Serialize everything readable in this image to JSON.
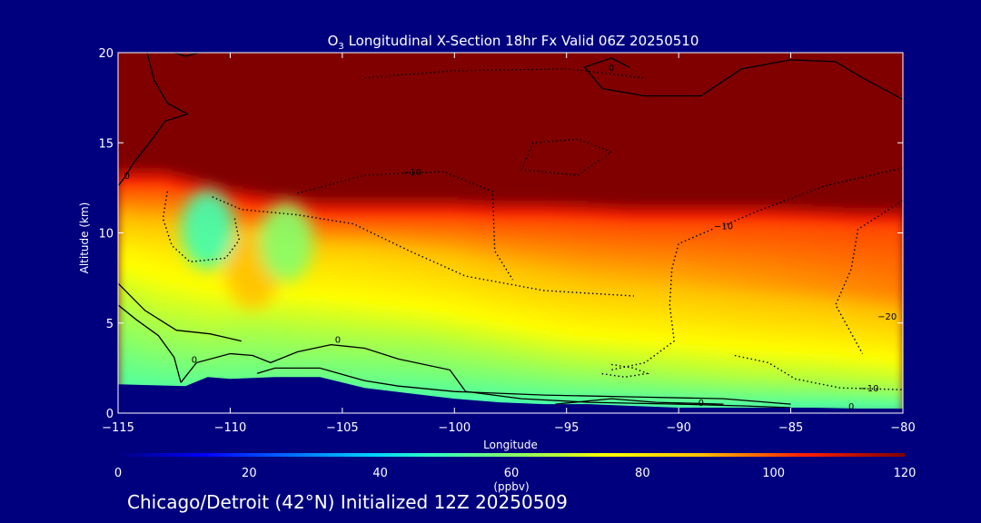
{
  "chart_data": {
    "type": "heatmap",
    "title_species": "O",
    "title_subscript": "3",
    "title_rest": " Longitudinal X-Section 18hr  Fx Valid 06Z 20250510",
    "xlabel": "Longitude",
    "ylabel": "Altitude (km)",
    "xlim": [
      -115,
      -80
    ],
    "ylim": [
      0,
      20
    ],
    "xticks": [
      -115,
      -110,
      -105,
      -100,
      -95,
      -90,
      -85,
      -80
    ],
    "xtick_labels": [
      "−115",
      "−110",
      "−105",
      "−100",
      "−95",
      "−90",
      "−85",
      "−80"
    ],
    "yticks": [
      0,
      5,
      10,
      15,
      20
    ],
    "ytick_labels": [
      "0",
      "5",
      "10",
      "15",
      "20"
    ],
    "colorbar": {
      "min": 0,
      "max": 120,
      "ticks": [
        0,
        20,
        40,
        60,
        80,
        100,
        120
      ],
      "tick_labels": [
        "0",
        "20",
        "40",
        "60",
        "80",
        "100",
        "120"
      ],
      "units": "(ppbv)"
    },
    "terrain_km": [
      [
        -115,
        1.6
      ],
      [
        -112,
        1.5
      ],
      [
        -111,
        2.0
      ],
      [
        -110,
        1.9
      ],
      [
        -108,
        2.0
      ],
      [
        -106,
        2.0
      ],
      [
        -104,
        1.4
      ],
      [
        -102,
        1.1
      ],
      [
        -100,
        0.8
      ],
      [
        -98,
        0.6
      ],
      [
        -96,
        0.5
      ],
      [
        -94,
        0.5
      ],
      [
        -92,
        0.4
      ],
      [
        -90,
        0.3
      ],
      [
        -88,
        0.3
      ],
      [
        -86,
        0.3
      ],
      [
        -84,
        0.3
      ],
      [
        -82,
        0.25
      ],
      [
        -80,
        0.25
      ]
    ],
    "tropopause_km": [
      [
        -115,
        12.6
      ],
      [
        -113,
        12.6
      ],
      [
        -112,
        12.3
      ],
      [
        -110,
        11.6
      ],
      [
        -108,
        11.2
      ],
      [
        -106,
        10.9
      ],
      [
        -104,
        10.9
      ],
      [
        -102,
        10.9
      ],
      [
        -100,
        10.9
      ],
      [
        -98,
        10.8
      ],
      [
        -96,
        10.8
      ],
      [
        -94,
        10.7
      ],
      [
        -92,
        10.6
      ],
      [
        -90,
        10.6
      ],
      [
        -88,
        10.6
      ],
      [
        -86,
        10.6
      ],
      [
        -84,
        10.5
      ],
      [
        -82,
        10.4
      ],
      [
        -80,
        10.4
      ]
    ],
    "upper_troposphere_km": [
      [
        -115,
        9.0
      ],
      [
        -112,
        8.8
      ],
      [
        -110,
        8.5
      ],
      [
        -108,
        8.6
      ],
      [
        -106,
        8.6
      ],
      [
        -104,
        8.6
      ],
      [
        -102,
        8.4
      ],
      [
        -100,
        8.2
      ],
      [
        -98,
        7.8
      ],
      [
        -96,
        7.5
      ],
      [
        -94,
        7.3
      ],
      [
        -92,
        7.3
      ],
      [
        -90,
        7.3
      ],
      [
        -88,
        7.2
      ],
      [
        -86,
        7.1
      ],
      [
        -84,
        7.0
      ],
      [
        -82,
        6.8
      ],
      [
        -80,
        6.6
      ]
    ],
    "boundary_layer_top_km": [
      [
        -115,
        6.0
      ],
      [
        -113,
        5.0
      ],
      [
        -111,
        4.6
      ],
      [
        -109,
        4.8
      ],
      [
        -107,
        4.6
      ],
      [
        -105,
        4.4
      ],
      [
        -103,
        4.2
      ],
      [
        -101,
        4.0
      ],
      [
        -99,
        3.6
      ],
      [
        -97,
        3.2
      ],
      [
        -95,
        2.8
      ],
      [
        -93,
        2.6
      ],
      [
        -91,
        2.4
      ],
      [
        -89,
        2.2
      ],
      [
        -87,
        2.0
      ],
      [
        -85,
        1.9
      ],
      [
        -83,
        1.8
      ],
      [
        -81,
        1.6
      ],
      [
        -80,
        1.5
      ]
    ],
    "hotspots": [
      {
        "lon": -109.0,
        "alt_km": 8.0,
        "value": 88
      },
      {
        "lon": -111.0,
        "alt_km": 10.2,
        "value": 50
      },
      {
        "lon": -107.5,
        "alt_km": 9.5,
        "value": 60
      }
    ],
    "contour_labels": [
      {
        "text": "0",
        "lon": -114.6,
        "alt_km": 13.0
      },
      {
        "text": "0",
        "lon": -111.6,
        "alt_km": 2.8
      },
      {
        "text": "0",
        "lon": -105.2,
        "alt_km": 3.9
      },
      {
        "text": "0",
        "lon": -93.0,
        "alt_km": 19.0
      },
      {
        "text": "0",
        "lon": -89.0,
        "alt_km": 0.4
      },
      {
        "text": "0",
        "lon": -82.3,
        "alt_km": 0.2
      },
      {
        "text": "−10",
        "lon": -101.9,
        "alt_km": 13.2
      },
      {
        "text": "−10",
        "lon": -88.0,
        "alt_km": 10.2
      },
      {
        "text": "−10",
        "lon": -81.5,
        "alt_km": 1.2
      },
      {
        "text": "−20",
        "lon": -80.7,
        "alt_km": 5.2
      }
    ],
    "solid_contours": [
      [
        [
          -113.7,
          20
        ],
        [
          -113.4,
          18.5
        ],
        [
          -112.8,
          17.2
        ],
        [
          -111.9,
          16.6
        ],
        [
          -112.9,
          16.2
        ],
        [
          -113.6,
          15.0
        ],
        [
          -114.3,
          13.9
        ],
        [
          -114.7,
          13.1
        ],
        [
          -115,
          12.6
        ]
      ],
      [
        [
          -112.5,
          20
        ],
        [
          -112.0,
          19.8
        ],
        [
          -111.4,
          20
        ]
      ],
      [
        [
          -115,
          6.0
        ],
        [
          -114.2,
          5.2
        ],
        [
          -113.2,
          4.3
        ],
        [
          -112.5,
          3.1
        ],
        [
          -112.2,
          1.7
        ]
      ],
      [
        [
          -115,
          7.2
        ],
        [
          -113.8,
          5.7
        ],
        [
          -112.4,
          4.6
        ],
        [
          -110.9,
          4.4
        ],
        [
          -109.5,
          4.0
        ]
      ],
      [
        [
          -112.2,
          1.7
        ],
        [
          -111.5,
          2.8
        ],
        [
          -110.0,
          3.3
        ],
        [
          -109.0,
          3.2
        ],
        [
          -108.2,
          2.8
        ],
        [
          -107.0,
          3.4
        ],
        [
          -105.5,
          3.8
        ],
        [
          -104.0,
          3.6
        ],
        [
          -102.5,
          3.0
        ],
        [
          -100.2,
          2.4
        ],
        [
          -99.5,
          1.2
        ],
        [
          -97.0,
          0.8
        ],
        [
          -94.0,
          0.6
        ],
        [
          -90.0,
          0.5
        ],
        [
          -87.0,
          0.4
        ],
        [
          -85.0,
          0.3
        ]
      ],
      [
        [
          -108.8,
          2.2
        ],
        [
          -108.0,
          2.5
        ],
        [
          -106.0,
          2.5
        ],
        [
          -104.0,
          1.8
        ],
        [
          -102.5,
          1.5
        ],
        [
          -100.0,
          1.2
        ],
        [
          -96.0,
          1.0
        ],
        [
          -92.0,
          0.9
        ],
        [
          -88.0,
          0.8
        ],
        [
          -85.0,
          0.5
        ]
      ],
      [
        [
          -95.5,
          0.5
        ],
        [
          -93.0,
          0.8
        ],
        [
          -91.0,
          0.6
        ],
        [
          -88.0,
          0.5
        ]
      ],
      [
        [
          -80,
          17.4
        ],
        [
          -81.8,
          18.6
        ],
        [
          -83.0,
          19.5
        ],
        [
          -85.0,
          19.6
        ],
        [
          -87.2,
          19.1
        ],
        [
          -89.0,
          17.6
        ],
        [
          -91.5,
          17.6
        ],
        [
          -93.4,
          18.0
        ],
        [
          -94.2,
          19.2
        ],
        [
          -93.0,
          19.7
        ],
        [
          -92.2,
          19.2
        ]
      ]
    ],
    "dotted_contours": [
      [
        [
          -112.8,
          12.3
        ],
        [
          -113.0,
          10.8
        ],
        [
          -112.6,
          9.3
        ],
        [
          -111.8,
          8.4
        ],
        [
          -110.2,
          8.6
        ],
        [
          -109.6,
          9.6
        ],
        [
          -109.8,
          10.8
        ]
      ],
      [
        [
          -110.8,
          12.0
        ],
        [
          -109.5,
          11.3
        ],
        [
          -107.0,
          11.0
        ],
        [
          -104.5,
          10.5
        ],
        [
          -102.0,
          9.0
        ],
        [
          -99.5,
          7.6
        ],
        [
          -96.0,
          6.8
        ],
        [
          -92.0,
          6.5
        ]
      ],
      [
        [
          -107.0,
          12.2
        ],
        [
          -104.0,
          13.2
        ],
        [
          -100.5,
          13.4
        ],
        [
          -98.3,
          12.3
        ],
        [
          -98.2,
          9.0
        ],
        [
          -97.4,
          7.4
        ]
      ],
      [
        [
          -104.0,
          18.6
        ],
        [
          -100.0,
          19.0
        ],
        [
          -95.0,
          19.1
        ],
        [
          -91.5,
          18.6
        ]
      ],
      [
        [
          -94.5,
          15.2
        ],
        [
          -96.5,
          15.0
        ],
        [
          -97.0,
          13.5
        ],
        [
          -94.5,
          13.2
        ],
        [
          -93.0,
          14.5
        ],
        [
          -94.5,
          15.2
        ]
      ],
      [
        [
          -88.5,
          10.2
        ],
        [
          -90.0,
          9.4
        ],
        [
          -90.3,
          8.0
        ],
        [
          -90.4,
          6.0
        ],
        [
          -90.2,
          4.0
        ],
        [
          -91.5,
          2.8
        ],
        [
          -93.0,
          2.4
        ]
      ],
      [
        [
          -80,
          13.6
        ],
        [
          -83.5,
          12.6
        ],
        [
          -86.5,
          11.2
        ],
        [
          -88.0,
          10.4
        ]
      ],
      [
        [
          -80,
          11.8
        ],
        [
          -82.0,
          10.2
        ],
        [
          -82.3,
          8.0
        ],
        [
          -83.0,
          6.0
        ],
        [
          -81.8,
          3.3
        ]
      ],
      [
        [
          -93.0,
          2.7
        ],
        [
          -92.0,
          2.5
        ],
        [
          -91.4,
          2.2
        ],
        [
          -92.4,
          2.0
        ],
        [
          -93.5,
          2.2
        ]
      ],
      [
        [
          -87.5,
          3.2
        ],
        [
          -86.0,
          2.8
        ],
        [
          -84.8,
          1.9
        ],
        [
          -82.8,
          1.4
        ],
        [
          -80.0,
          1.3
        ]
      ]
    ]
  },
  "footer_text": "Chicago/Detroit (42°N) Initialized 12Z 20250509"
}
